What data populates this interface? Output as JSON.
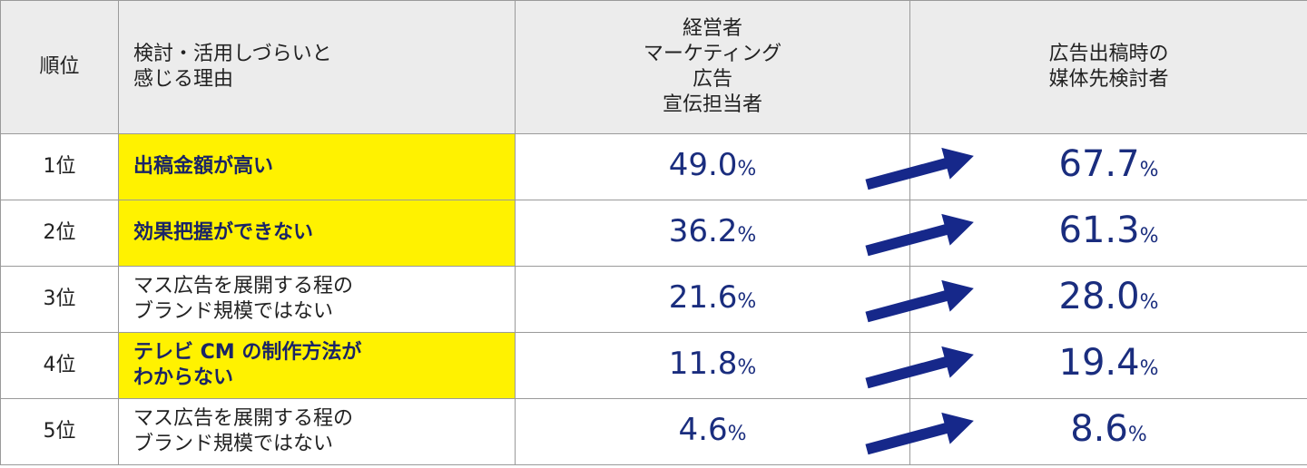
{
  "header": {
    "rank": "順位",
    "reason": "検討・活用しづらいと\n感じる理由",
    "before": "経営者\nマーケティング\n広告\n宣伝担当者",
    "after": "広告出稿時の\n媒体先検討者"
  },
  "rows": [
    {
      "rank": "1位",
      "reason": "出稿金額が高い",
      "highlight": true,
      "before": {
        "number": "49.0",
        "unit": "%"
      },
      "after": {
        "number": "67.7",
        "unit": "%"
      }
    },
    {
      "rank": "2位",
      "reason": "効果把握ができない",
      "highlight": true,
      "before": {
        "number": "36.2",
        "unit": "%"
      },
      "after": {
        "number": "61.3",
        "unit": "%"
      }
    },
    {
      "rank": "3位",
      "reason": "マス広告を展開する程の\nブランド規模ではない",
      "highlight": false,
      "before": {
        "number": "21.6",
        "unit": "%"
      },
      "after": {
        "number": "28.0",
        "unit": "%"
      }
    },
    {
      "rank": "4位",
      "reason": "テレビ CM の制作方法が\nわからない",
      "highlight": true,
      "before": {
        "number": "11.8",
        "unit": "%"
      },
      "after": {
        "number": "19.4",
        "unit": "%"
      }
    },
    {
      "rank": "5位",
      "reason": "マス広告を展開する程の\nブランド規模ではない",
      "highlight": false,
      "before": {
        "number": "4.6",
        "unit": "%"
      },
      "after": {
        "number": "8.6",
        "unit": "%"
      }
    }
  ]
}
